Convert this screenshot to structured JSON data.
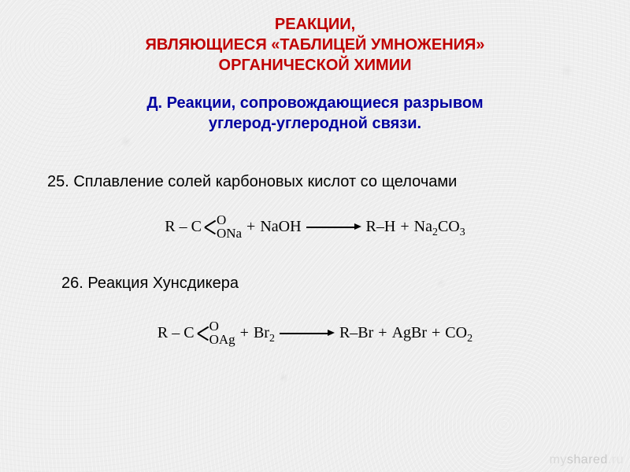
{
  "colors": {
    "title": "#c00000",
    "subtitle": "#0000a0",
    "body": "#000000",
    "background": "#eeeeee"
  },
  "typography": {
    "heading_font": "Arial",
    "heading_size_pt": 15,
    "heading_weight": "bold",
    "body_font": "Arial",
    "body_size_pt": 15,
    "formula_font": "Times New Roman",
    "formula_size_pt": 15
  },
  "title": {
    "line1": "РЕАКЦИИ,",
    "line2": "ЯВЛЯЮЩИЕСЯ «ТАБЛИЦЕЙ УМНОЖЕНИЯ»",
    "line3": "ОРГАНИЧЕСКОЙ ХИМИИ"
  },
  "subtitle": {
    "line1": "Д.  Реакции, сопровождающиеся разрывом",
    "line2": "углерод-углеродной связи."
  },
  "items": {
    "i25": {
      "label": "25. Сплавление солей карбоновых кислот со щелочами",
      "reaction": {
        "reagent_prefix": "R – C",
        "reagent_top": "O",
        "reagent_bottom": "ONa",
        "plus1": "+",
        "reagent2": "NaOH",
        "product1": "R–H",
        "plus2": "+",
        "product2_html": "Na<sub>2</sub>CO<sub>3</sub>"
      }
    },
    "i26": {
      "label": "26. Реакция Хунсдикера",
      "reaction": {
        "reagent_prefix": "R – C",
        "reagent_top": "O",
        "reagent_bottom": "OAg",
        "plus1": "+",
        "reagent2_html": "Br<sub>2</sub>",
        "product1": "R–Br",
        "plus2": "+",
        "product2": "AgBr",
        "plus3": "+",
        "product3_html": "CO<sub>2</sub>"
      }
    }
  },
  "watermark": {
    "part1": "my",
    "part2": "shared",
    "part3": ".ru"
  }
}
